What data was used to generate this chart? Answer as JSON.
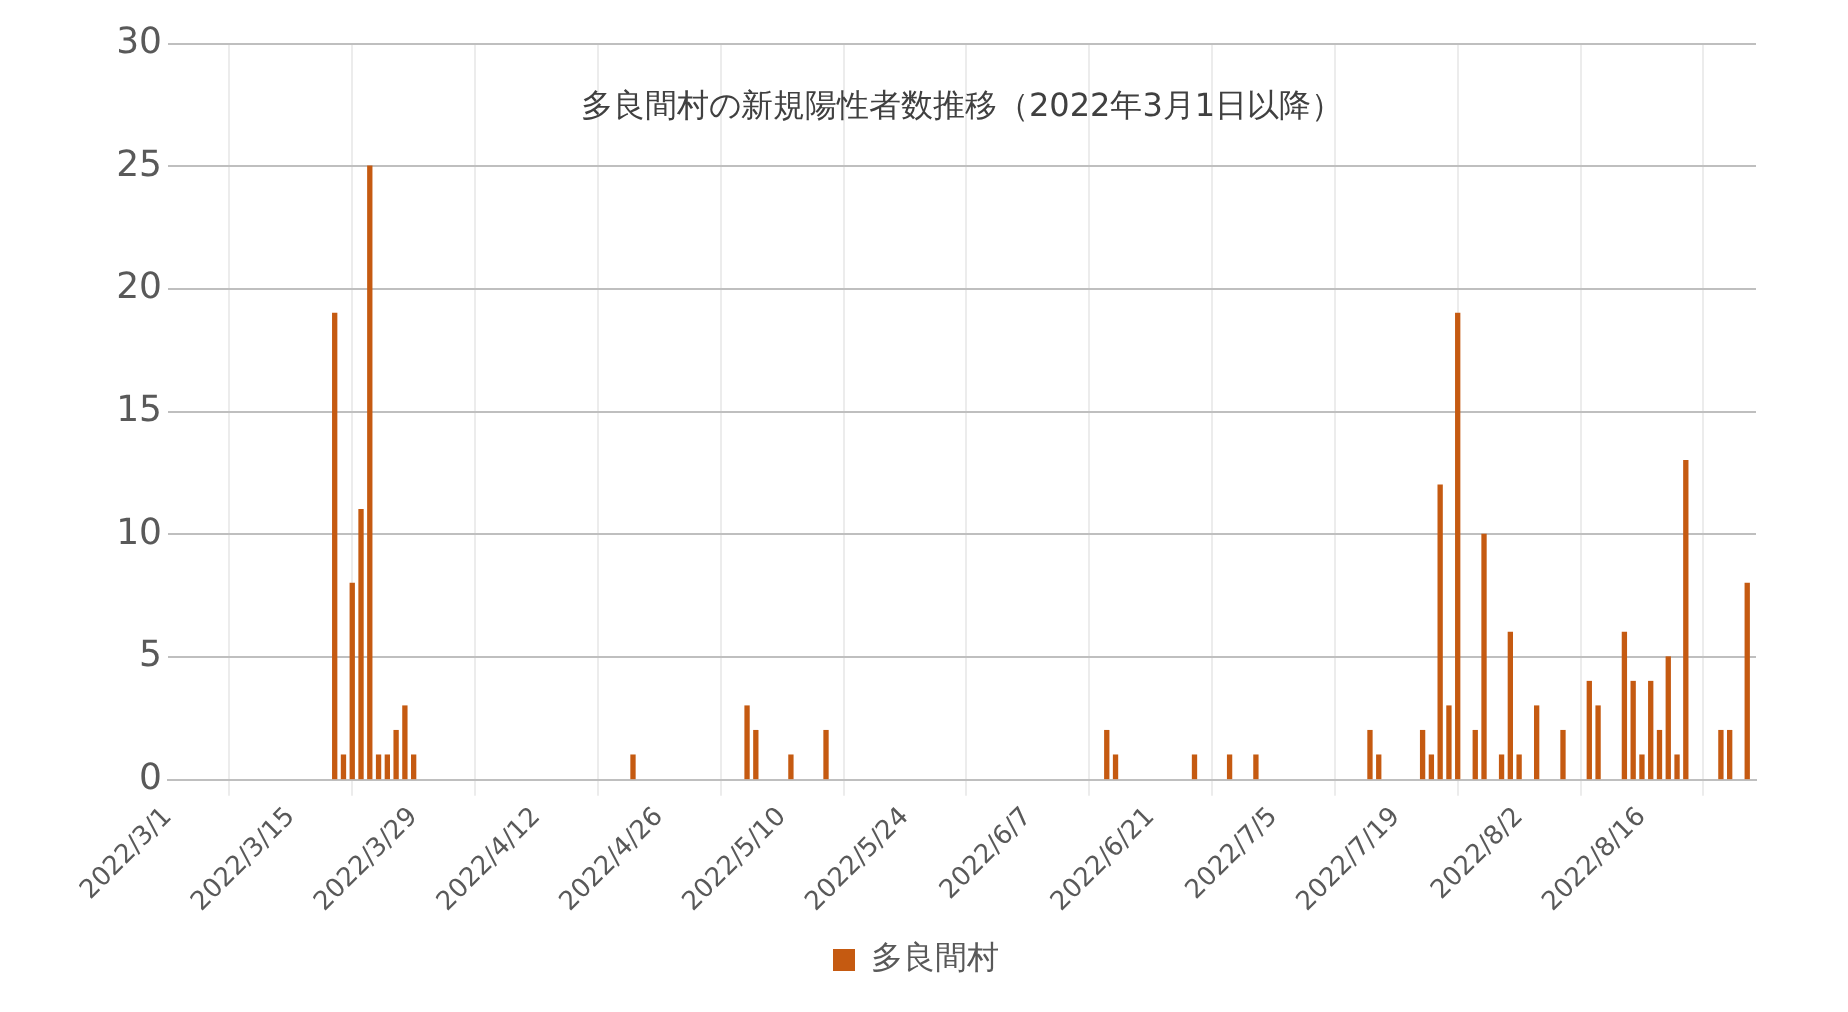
{
  "chart_data": {
    "type": "bar",
    "title": "多良間村の新規陽性者数推移（2022年3月1日以降）",
    "x": [
      "2022-03-20",
      "2022-03-21",
      "2022-03-22",
      "2022-03-23",
      "2022-03-24",
      "2022-03-25",
      "2022-03-26",
      "2022-03-27",
      "2022-03-28",
      "2022-03-29",
      "2022-04-23",
      "2022-05-06",
      "2022-05-07",
      "2022-05-11",
      "2022-05-15",
      "2022-06-16",
      "2022-06-17",
      "2022-06-26",
      "2022-06-30",
      "2022-07-03",
      "2022-07-16",
      "2022-07-17",
      "2022-07-22",
      "2022-07-23",
      "2022-07-24",
      "2022-07-25",
      "2022-07-26",
      "2022-07-28",
      "2022-07-29",
      "2022-07-31",
      "2022-08-01",
      "2022-08-02",
      "2022-08-04",
      "2022-08-07",
      "2022-08-10",
      "2022-08-11",
      "2022-08-14",
      "2022-08-15",
      "2022-08-16",
      "2022-08-17",
      "2022-08-18",
      "2022-08-19",
      "2022-08-20",
      "2022-08-21",
      "2022-08-25",
      "2022-08-26",
      "2022-08-28"
    ],
    "series": [
      {
        "name": "多良間村",
        "color": "#c55a11",
        "values": [
          19,
          1,
          8,
          11,
          25,
          1,
          1,
          2,
          3,
          1,
          1,
          3,
          2,
          1,
          2,
          2,
          1,
          1,
          1,
          1,
          2,
          1,
          2,
          1,
          12,
          3,
          19,
          2,
          10,
          1,
          6,
          1,
          3,
          2,
          4,
          3,
          6,
          4,
          1,
          4,
          2,
          5,
          1,
          13,
          2,
          2,
          8
        ]
      }
    ],
    "xlim": [
      "2022-03-01",
      "2022-08-29"
    ],
    "xticks": [
      {
        "value": "2022-03-01",
        "label": "2022/3/1"
      },
      {
        "value": "2022-03-15",
        "label": "2022/3/15"
      },
      {
        "value": "2022-03-29",
        "label": "2022/3/29"
      },
      {
        "value": "2022-04-12",
        "label": "2022/4/12"
      },
      {
        "value": "2022-04-26",
        "label": "2022/4/26"
      },
      {
        "value": "2022-05-10",
        "label": "2022/5/10"
      },
      {
        "value": "2022-05-24",
        "label": "2022/5/24"
      },
      {
        "value": "2022-06-07",
        "label": "2022/6/7"
      },
      {
        "value": "2022-06-21",
        "label": "2022/6/21"
      },
      {
        "value": "2022-07-05",
        "label": "2022/7/5"
      },
      {
        "value": "2022-07-19",
        "label": "2022/7/19"
      },
      {
        "value": "2022-08-02",
        "label": "2022/8/2"
      },
      {
        "value": "2022-08-16",
        "label": "2022/8/16"
      }
    ],
    "ylim": [
      0,
      30
    ],
    "yticks": [
      0,
      5,
      10,
      15,
      20,
      25,
      30
    ],
    "grid": true,
    "legend": "bottom"
  }
}
